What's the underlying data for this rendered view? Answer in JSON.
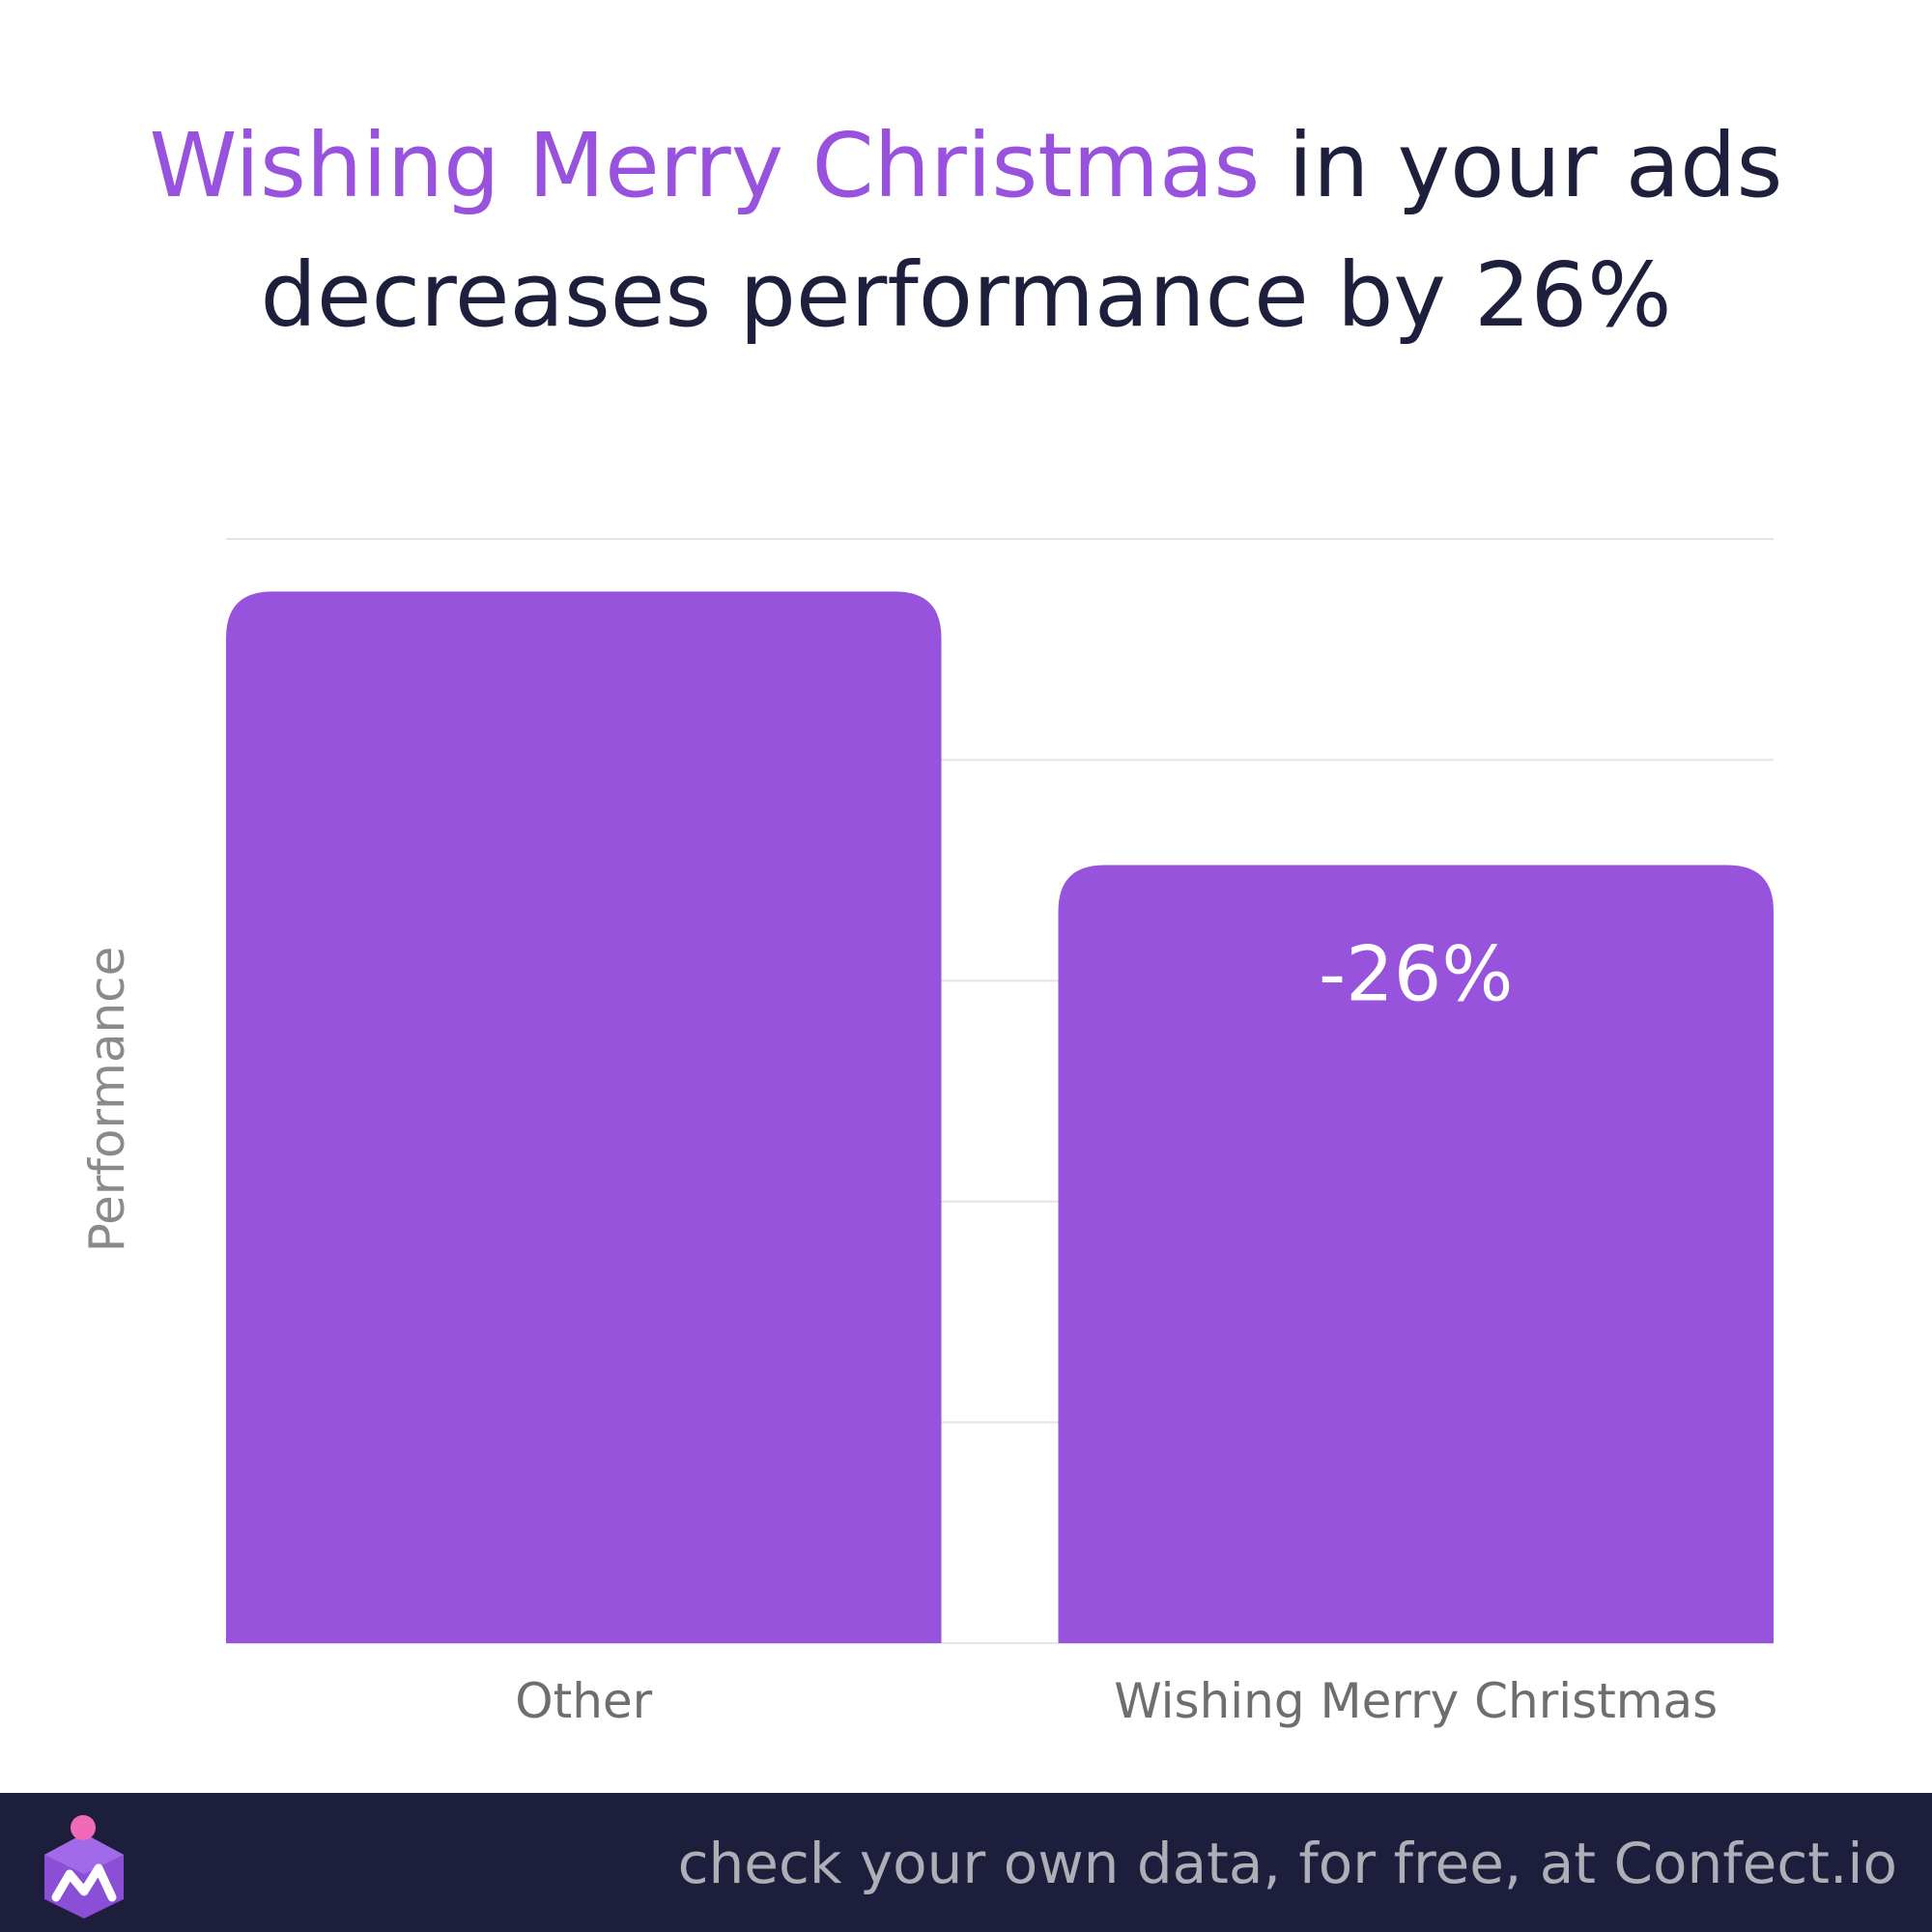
{
  "title": {
    "highlight": "Wishing Merry Christmas",
    "rest_line1": " in your ads",
    "line2": "decreases performance by 26%"
  },
  "colors": {
    "accent": "#9952dd",
    "bar": "#9853dd",
    "title_dark": "#1e1f3d",
    "footer_bg": "#1d1e3c",
    "axis_text": "#6e6e6e",
    "grid": "#e4e4e8"
  },
  "chart_data": {
    "type": "bar",
    "categories": [
      "Other",
      "Wishing Merry Christmas"
    ],
    "values": [
      1.0,
      0.74
    ],
    "data_labels": [
      "",
      "-26%"
    ],
    "xlabel": "",
    "ylabel": "Performance",
    "ylim": [
      0,
      1.05
    ],
    "grid": true,
    "legend": "none"
  },
  "footer": {
    "tagline": "check your own data, for free, at Confect.io",
    "logo_icon": "confect-logo-icon"
  }
}
